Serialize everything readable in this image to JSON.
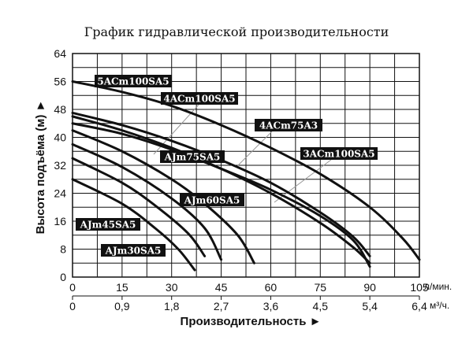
{
  "chart_data": {
    "type": "line",
    "title": "График гидравлической производительности",
    "ylabel": "Высота подъёма (м) ►",
    "xlabel": "Производительность ►",
    "x_unit_1": "л/мин.",
    "x_unit_2": "м³/ч.",
    "ylim": [
      0,
      64
    ],
    "xlim": [
      0,
      105
    ],
    "y_ticks": [
      "0",
      "8",
      "16",
      "24",
      "32",
      "40",
      "48",
      "56",
      "64"
    ],
    "x_ticks_lmin": [
      "0",
      "15",
      "30",
      "45",
      "60",
      "75",
      "90",
      "105"
    ],
    "x_ticks_m3h": [
      "0",
      "0,9",
      "1,8",
      "2,7",
      "3,6",
      "4,5",
      "5,4",
      "6,4"
    ],
    "grid": true,
    "series": [
      {
        "name": "5ACm100SA5",
        "points": [
          [
            0,
            56
          ],
          [
            15,
            53
          ],
          [
            30,
            49
          ],
          [
            45,
            43.5
          ],
          [
            60,
            37
          ],
          [
            75,
            29.5
          ],
          [
            90,
            20
          ],
          [
            100,
            11
          ],
          [
            105,
            5
          ]
        ]
      },
      {
        "name": "4ACm100SA5",
        "points": [
          [
            0,
            47
          ],
          [
            15,
            43.5
          ],
          [
            30,
            39
          ],
          [
            45,
            33.5
          ],
          [
            60,
            27
          ],
          [
            75,
            18.5
          ],
          [
            85,
            11.5
          ],
          [
            90,
            6
          ]
        ]
      },
      {
        "name": "4ACm75A3",
        "points": [
          [
            0,
            46
          ],
          [
            15,
            42
          ],
          [
            30,
            37
          ],
          [
            45,
            31
          ],
          [
            60,
            24
          ],
          [
            75,
            15.5
          ],
          [
            85,
            8.5
          ],
          [
            90,
            4
          ]
        ]
      },
      {
        "name": "3ACm100SA5",
        "points": [
          [
            0,
            44
          ],
          [
            15,
            41
          ],
          [
            30,
            36.5
          ],
          [
            45,
            31
          ],
          [
            60,
            25
          ],
          [
            75,
            17.5
          ],
          [
            85,
            10.5
          ],
          [
            90,
            3
          ]
        ]
      },
      {
        "name": "AJm75SA5",
        "points": [
          [
            0,
            42
          ],
          [
            15,
            36
          ],
          [
            30,
            28
          ],
          [
            40,
            21
          ],
          [
            50,
            12
          ],
          [
            55,
            4
          ]
        ]
      },
      {
        "name": "AJm60SA5",
        "points": [
          [
            0,
            38
          ],
          [
            15,
            31.5
          ],
          [
            30,
            22.5
          ],
          [
            40,
            14
          ],
          [
            45,
            5
          ]
        ]
      },
      {
        "name": "AJm45SA5",
        "points": [
          [
            0,
            34
          ],
          [
            15,
            27
          ],
          [
            25,
            20.5
          ],
          [
            35,
            12.5
          ],
          [
            40,
            6
          ]
        ]
      },
      {
        "name": "AJm30SA5",
        "points": [
          [
            0,
            28
          ],
          [
            15,
            21
          ],
          [
            25,
            14
          ],
          [
            32,
            8
          ],
          [
            37,
            2
          ]
        ]
      }
    ]
  }
}
